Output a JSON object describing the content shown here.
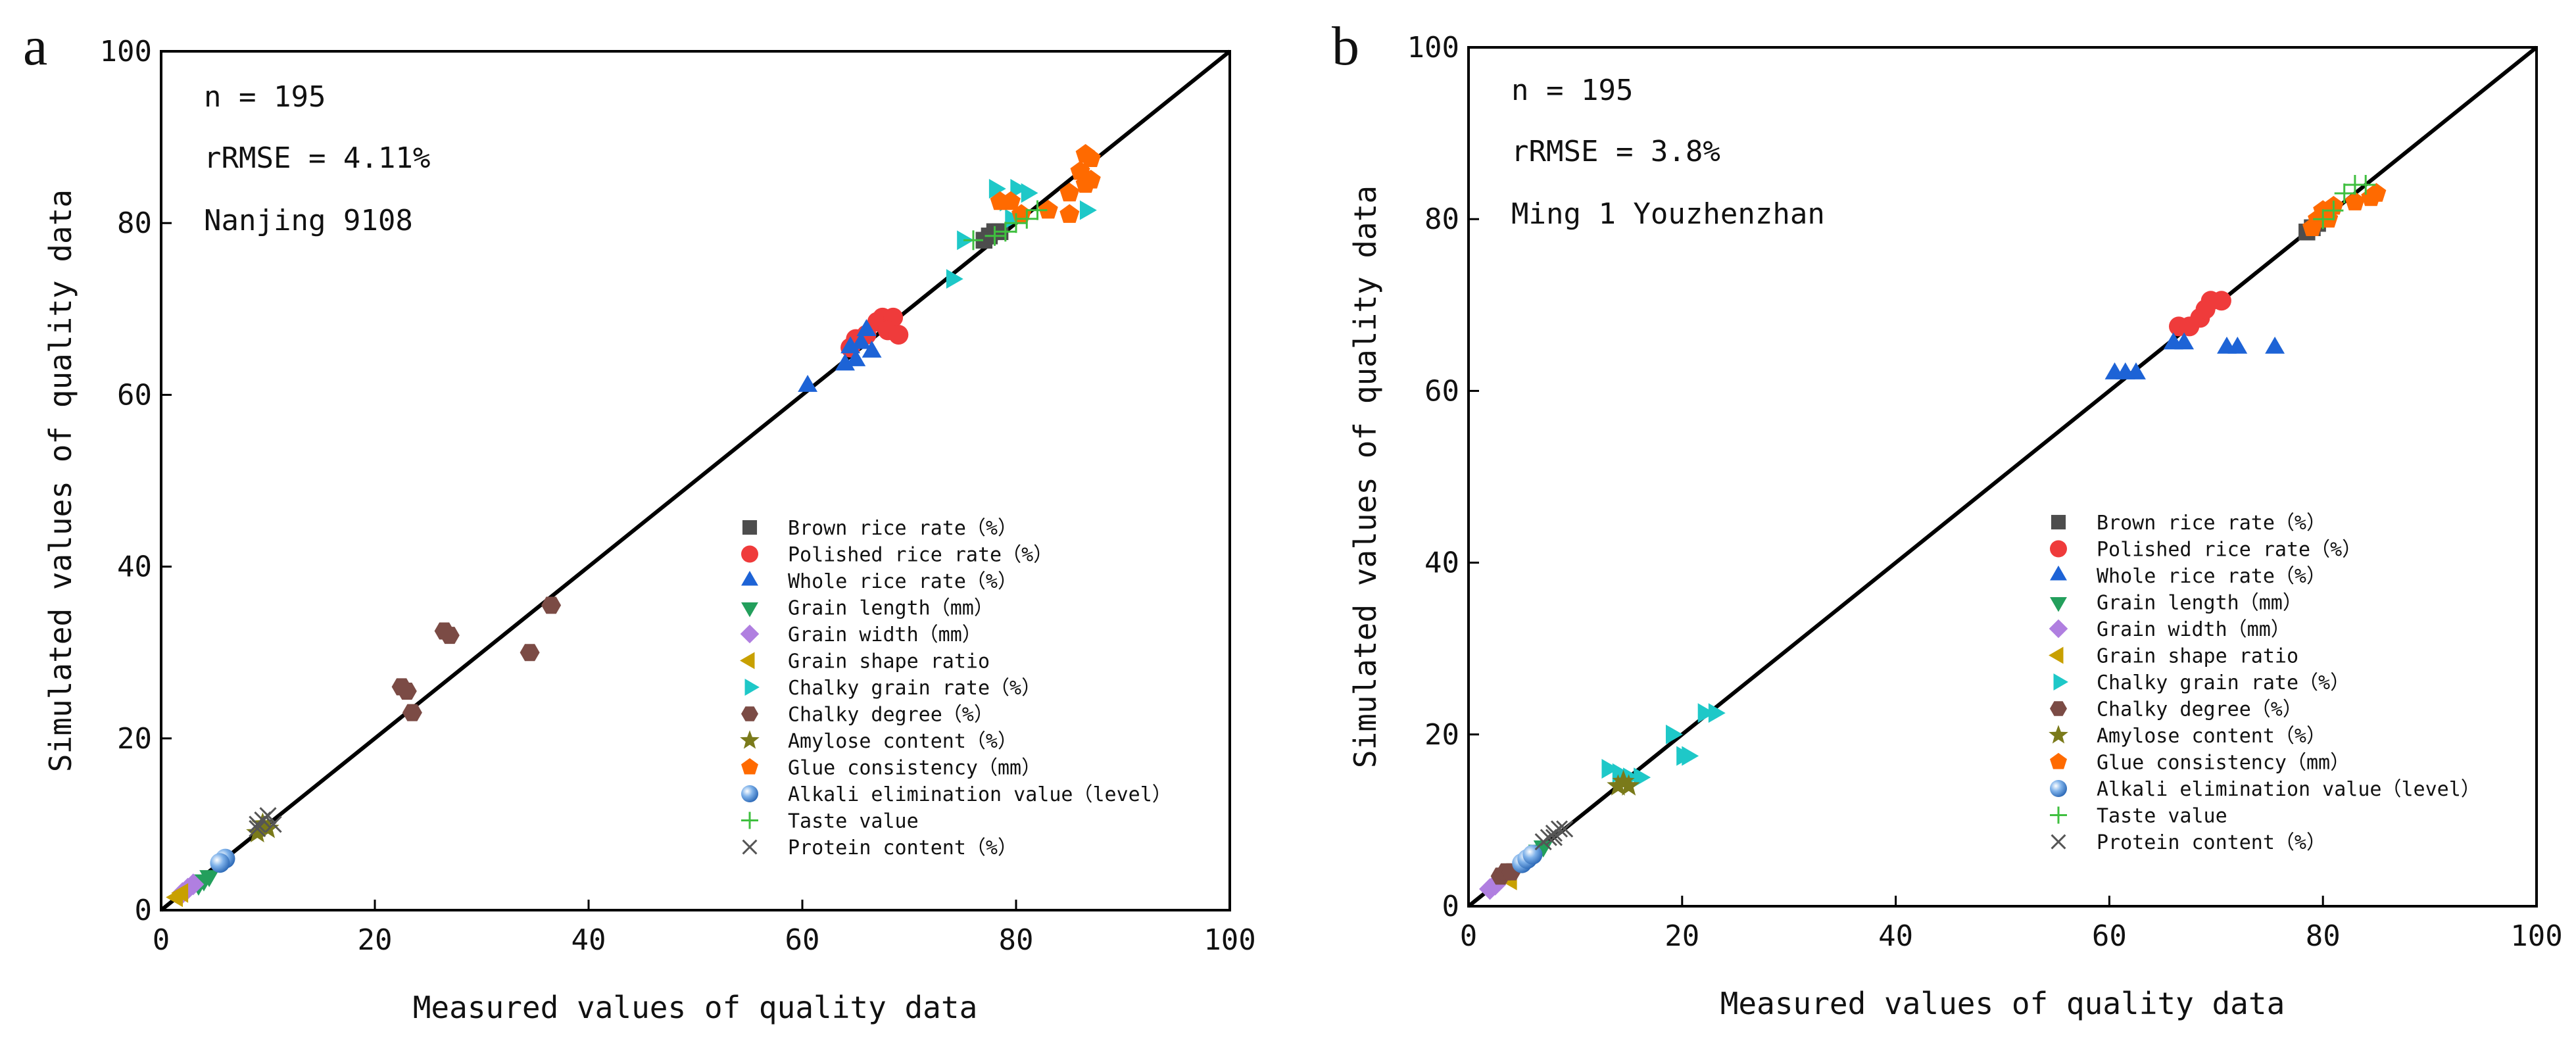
{
  "figure": {
    "panel_labels": [
      "a",
      "b"
    ]
  },
  "marker_styles": {
    "Brown rice rate（%）": {
      "shape": "square",
      "color": "#4d4d4d"
    },
    "Polished rice rate（%）": {
      "shape": "circle",
      "color": "#ef3b3b"
    },
    "Whole rice rate（%）": {
      "shape": "triangle-up",
      "color": "#1d63d6"
    },
    "Grain length（mm）": {
      "shape": "triangle-down",
      "color": "#239f5c"
    },
    "Grain width（mm）": {
      "shape": "diamond",
      "color": "#b07fe0"
    },
    "Grain shape ratio": {
      "shape": "triangle-left",
      "color": "#c8a000"
    },
    "Chalky grain rate（%）": {
      "shape": "triangle-right",
      "color": "#1ec8c8"
    },
    "Chalky degree（%）": {
      "shape": "hexagon",
      "color": "#7b4b45"
    },
    "Amylose content（%）": {
      "shape": "star",
      "color": "#7a7a1a"
    },
    "Glue consistency（mm）": {
      "shape": "pentagon",
      "color": "#ff6a00"
    },
    "Alkali elimination value（level）": {
      "shape": "sphere",
      "color": "#4a8ed6"
    },
    "Taste value": {
      "shape": "plus",
      "color": "#3fbf3f"
    },
    "Protein content（%）": {
      "shape": "x",
      "color": "#555555"
    }
  },
  "chart_data": [
    {
      "panel": "a",
      "type": "scatter",
      "title": "",
      "xlabel": "Measured values of quality data",
      "ylabel": "Simulated values of quality data",
      "xlim": [
        0,
        100
      ],
      "ylim": [
        0,
        100
      ],
      "xticks": [
        0,
        20,
        40,
        60,
        80,
        100
      ],
      "yticks": [
        0,
        20,
        40,
        60,
        80,
        100
      ],
      "reference_line": "y = x",
      "annotations": [
        "n = 195",
        "rRMSE = 4.11%",
        "Nanjing 9108"
      ],
      "legend_position": "bottom-right",
      "series": [
        {
          "name": "Brown rice rate（%）",
          "points": [
            [
              77.5,
              78.5
            ],
            [
              78.0,
              79.0
            ],
            [
              78.5,
              79.0
            ],
            [
              77.0,
              78.0
            ]
          ]
        },
        {
          "name": "Polished rice rate（%）",
          "points": [
            [
              64.5,
              65.5
            ],
            [
              65.0,
              66.5
            ],
            [
              66.0,
              67.0
            ],
            [
              67.0,
              68.5
            ],
            [
              67.5,
              69.0
            ],
            [
              68.5,
              69.0
            ],
            [
              68.0,
              67.5
            ],
            [
              69.0,
              67.0
            ]
          ]
        },
        {
          "name": "Whole rice rate（%）",
          "points": [
            [
              60.5,
              61.0
            ],
            [
              64.0,
              63.5
            ],
            [
              65.0,
              64.0
            ],
            [
              65.5,
              66.0
            ],
            [
              66.0,
              67.5
            ],
            [
              66.5,
              65.0
            ],
            [
              64.5,
              65.5
            ]
          ]
        },
        {
          "name": "Grain length（mm）",
          "points": [
            [
              4.0,
              3.5
            ],
            [
              4.5,
              4.0
            ],
            [
              3.5,
              3.0
            ]
          ]
        },
        {
          "name": "Grain width（mm）",
          "points": [
            [
              2.0,
              2.0
            ],
            [
              2.5,
              2.5
            ],
            [
              3.0,
              3.0
            ]
          ]
        },
        {
          "name": "Grain shape ratio",
          "points": [
            [
              1.5,
              1.5
            ],
            [
              2.0,
              2.0
            ]
          ]
        },
        {
          "name": "Chalky grain rate（%）",
          "points": [
            [
              74.0,
              73.5
            ],
            [
              75.0,
              78.0
            ],
            [
              78.0,
              84.0
            ],
            [
              79.0,
              82.5
            ],
            [
              80.0,
              84.0
            ],
            [
              81.0,
              83.5
            ],
            [
              86.5,
              81.5
            ],
            [
              79.5,
              80.5
            ]
          ]
        },
        {
          "name": "Chalky degree（%）",
          "points": [
            [
              22.5,
              26.0
            ],
            [
              23.0,
              25.5
            ],
            [
              23.5,
              23.0
            ],
            [
              26.5,
              32.5
            ],
            [
              27.0,
              32.0
            ],
            [
              34.5,
              30.0
            ],
            [
              36.5,
              35.5
            ]
          ]
        },
        {
          "name": "Amylose content（%）",
          "points": [
            [
              9.0,
              9.0
            ],
            [
              9.5,
              10.0
            ],
            [
              10.0,
              9.5
            ]
          ]
        },
        {
          "name": "Glue consistency（mm）",
          "points": [
            [
              78.5,
              82.5
            ],
            [
              79.5,
              82.5
            ],
            [
              80.5,
              81.0
            ],
            [
              83.0,
              81.5
            ],
            [
              85.0,
              81.0
            ],
            [
              85.0,
              83.5
            ],
            [
              86.0,
              86.0
            ],
            [
              86.5,
              88.0
            ],
            [
              87.0,
              87.5
            ],
            [
              86.5,
              84.5
            ],
            [
              87.0,
              85.0
            ]
          ]
        },
        {
          "name": "Alkali elimination value（level）",
          "points": [
            [
              6.0,
              6.0
            ],
            [
              5.5,
              5.5
            ]
          ]
        },
        {
          "name": "Taste value",
          "points": [
            [
              76.0,
              78.0
            ],
            [
              78.0,
              78.5
            ],
            [
              79.0,
              79.0
            ],
            [
              80.0,
              80.0
            ],
            [
              81.0,
              80.5
            ],
            [
              82.0,
              81.5
            ]
          ]
        },
        {
          "name": "Protein content（%）",
          "points": [
            [
              9.0,
              10.0
            ],
            [
              9.5,
              10.5
            ],
            [
              10.0,
              11.0
            ],
            [
              10.5,
              10.0
            ],
            [
              9.0,
              9.5
            ]
          ]
        }
      ]
    },
    {
      "panel": "b",
      "type": "scatter",
      "title": "",
      "xlabel": "Measured values of quality data",
      "ylabel": "Simulated values of quality data",
      "xlim": [
        0,
        100
      ],
      "ylim": [
        0,
        100
      ],
      "xticks": [
        0,
        20,
        40,
        60,
        80,
        100
      ],
      "yticks": [
        0,
        20,
        40,
        60,
        80,
        100
      ],
      "reference_line": "y = x",
      "annotations": [
        "n = 195",
        "rRMSE = 3.8%",
        "Ming 1 Youzhenzhan"
      ],
      "legend_position": "bottom-right",
      "series": [
        {
          "name": "Brown rice rate（%）",
          "points": [
            [
              78.5,
              78.5
            ],
            [
              79.0,
              79.0
            ],
            [
              79.5,
              79.5
            ]
          ]
        },
        {
          "name": "Polished rice rate（%）",
          "points": [
            [
              66.5,
              67.5
            ],
            [
              67.5,
              67.5
            ],
            [
              68.5,
              68.5
            ],
            [
              69.5,
              70.5
            ],
            [
              70.5,
              70.5
            ],
            [
              69.0,
              69.5
            ]
          ]
        },
        {
          "name": "Whole rice rate（%）",
          "points": [
            [
              60.5,
              62.0
            ],
            [
              61.5,
              62.0
            ],
            [
              62.5,
              62.0
            ],
            [
              66.0,
              65.5
            ],
            [
              67.0,
              65.5
            ],
            [
              71.0,
              65.0
            ],
            [
              72.0,
              65.0
            ],
            [
              75.5,
              65.0
            ]
          ]
        },
        {
          "name": "Grain length（mm）",
          "points": [
            [
              6.5,
              6.5
            ],
            [
              7.0,
              7.0
            ]
          ]
        },
        {
          "name": "Grain width（mm）",
          "points": [
            [
              2.0,
              2.0
            ],
            [
              2.5,
              2.5
            ]
          ]
        },
        {
          "name": "Grain shape ratio",
          "points": [
            [
              3.5,
              3.5
            ],
            [
              4.0,
              3.0
            ]
          ]
        },
        {
          "name": "Chalky grain rate（%）",
          "points": [
            [
              13.0,
              16.0
            ],
            [
              14.0,
              15.5
            ],
            [
              15.0,
              15.0
            ],
            [
              16.0,
              15.0
            ],
            [
              19.0,
              20.0
            ],
            [
              20.0,
              17.5
            ],
            [
              20.5,
              17.5
            ],
            [
              22.0,
              22.5
            ],
            [
              23.0,
              22.5
            ]
          ]
        },
        {
          "name": "Chalky degree（%）",
          "points": [
            [
              3.0,
              3.5
            ],
            [
              3.5,
              4.0
            ],
            [
              4.0,
              4.0
            ]
          ]
        },
        {
          "name": "Amylose content（%）",
          "points": [
            [
              14.0,
              14.0
            ],
            [
              14.5,
              14.5
            ],
            [
              15.0,
              14.0
            ]
          ]
        },
        {
          "name": "Glue consistency（mm）",
          "points": [
            [
              79.0,
              79.0
            ],
            [
              79.5,
              80.0
            ],
            [
              80.0,
              81.0
            ],
            [
              81.0,
              81.5
            ],
            [
              83.0,
              82.0
            ],
            [
              84.5,
              82.5
            ],
            [
              85.0,
              83.0
            ],
            [
              80.5,
              80.0
            ]
          ]
        },
        {
          "name": "Alkali elimination value（level）",
          "points": [
            [
              5.0,
              5.0
            ],
            [
              5.5,
              5.5
            ],
            [
              6.0,
              6.0
            ]
          ]
        },
        {
          "name": "Taste value",
          "points": [
            [
              80.0,
              80.0
            ],
            [
              81.0,
              81.0
            ],
            [
              82.0,
              83.0
            ],
            [
              83.0,
              84.0
            ],
            [
              84.0,
              84.0
            ]
          ]
        },
        {
          "name": "Protein content（%）",
          "points": [
            [
              7.0,
              7.5
            ],
            [
              7.5,
              8.0
            ],
            [
              8.0,
              8.5
            ],
            [
              8.5,
              9.0
            ],
            [
              9.0,
              9.0
            ],
            [
              8.0,
              8.0
            ]
          ]
        }
      ]
    }
  ]
}
